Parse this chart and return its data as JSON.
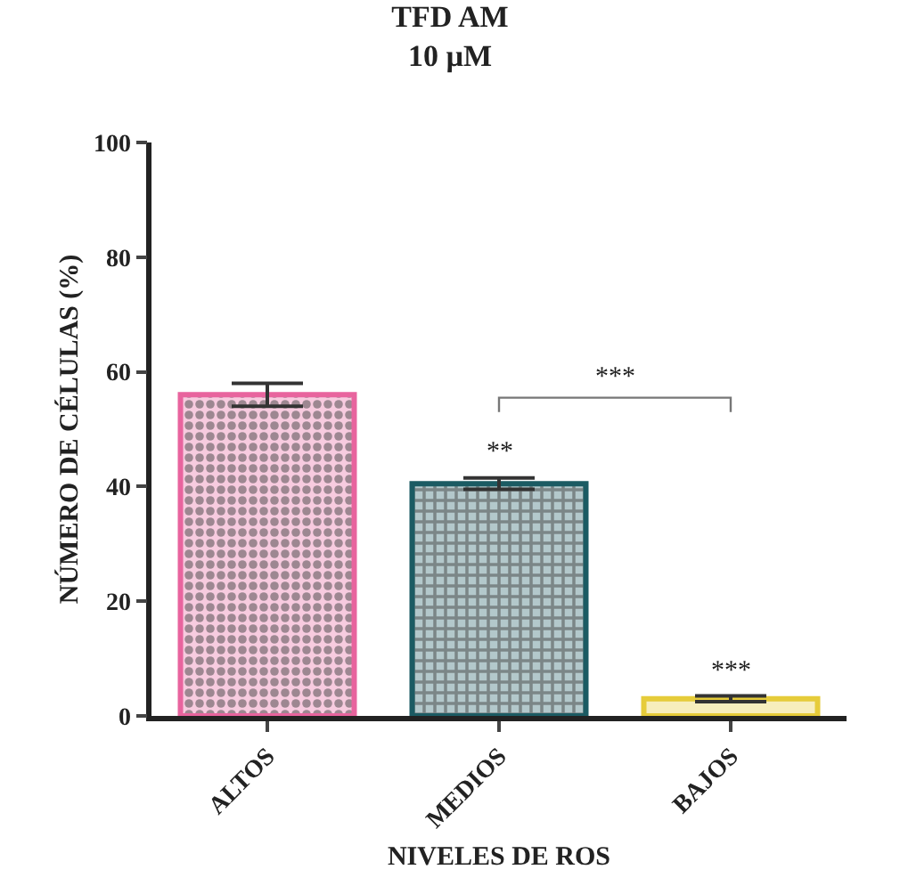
{
  "chart_data": {
    "type": "bar",
    "title": "TFD AM\n10 µM",
    "xlabel": "NIVELES DE ROS",
    "ylabel": "NÚMERO DE CÉLULAS (%)",
    "categories": [
      "ALTOS",
      "MEDIOS",
      "BAJOS"
    ],
    "values": [
      56,
      40.5,
      3
    ],
    "errors": [
      2,
      1,
      0.5
    ],
    "colors": [
      "#e8649e",
      "#1b5b63",
      "#e6cc3a"
    ],
    "ylim": [
      0,
      100
    ],
    "yticks": [
      0,
      20,
      40,
      60,
      80,
      100
    ],
    "annotations": [
      {
        "text": "**",
        "x": "MEDIOS",
        "y": 41.5
      },
      {
        "text": "***",
        "x": "BAJOS",
        "y": 3.5
      },
      "***"
    ]
  }
}
